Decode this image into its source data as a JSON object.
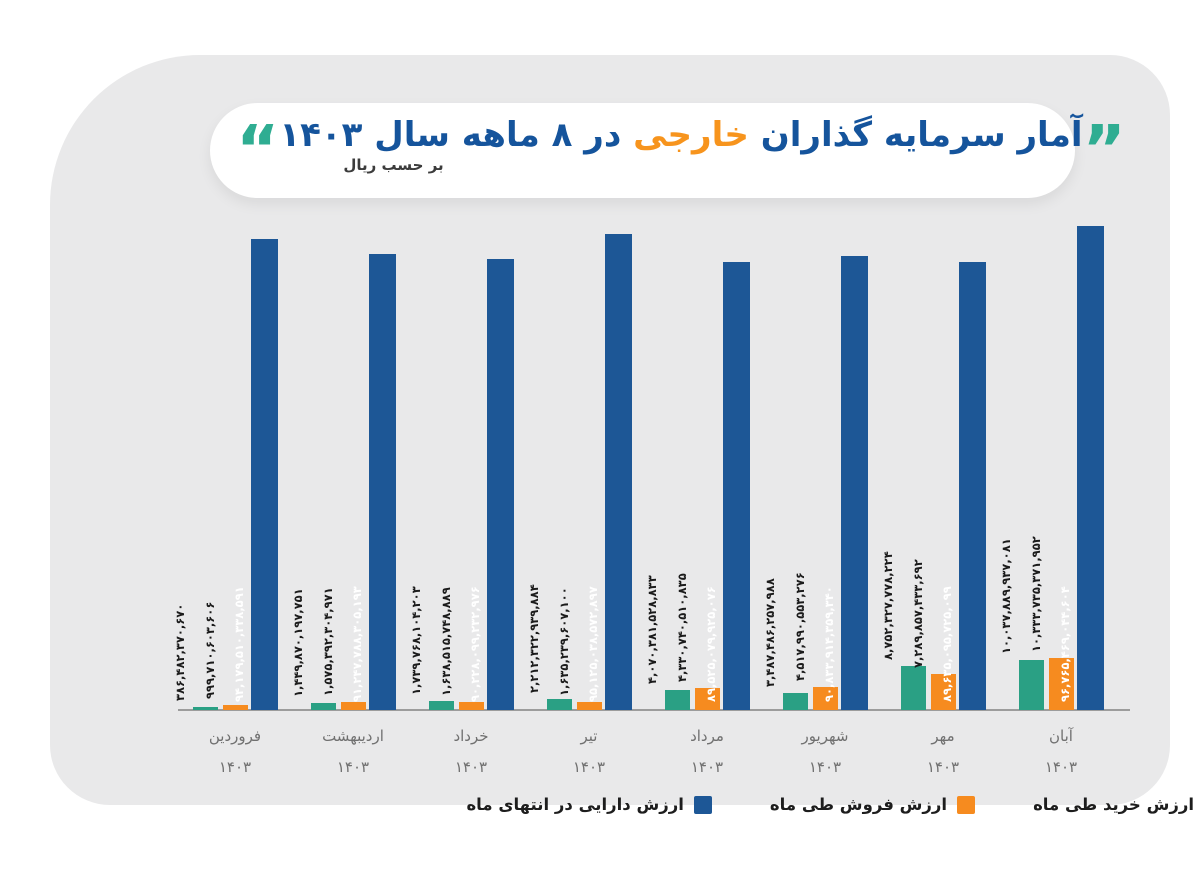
{
  "header": {
    "title_part1": "آمار سرمایه گذاران",
    "title_highlight": "خارجی",
    "title_part2": "در ۸ ماهه سال ۱۴۰۳",
    "subtitle": "بر حسب ریال",
    "quote_open": "“",
    "quote_close": "”",
    "accent_teal": "#2fad92",
    "accent_blue": "#15549c",
    "accent_orange": "#f7941d"
  },
  "chart_data": {
    "type": "bar",
    "title": "آمار سرمایه گذاران خارجی در ۸ ماهه سال ۱۴۰۳",
    "unit_note": "بر حسب ریال",
    "grid": false,
    "legend_position": "bottom",
    "ylim": [
      0,
      100000000000000
    ],
    "categories": [
      {
        "id": "farvardin",
        "label": "فروردین",
        "year": "۱۴۰۳"
      },
      {
        "id": "ordibehesht",
        "label": "اردیبهشت",
        "year": "۱۴۰۳"
      },
      {
        "id": "khordad",
        "label": "خرداد",
        "year": "۱۴۰۳"
      },
      {
        "id": "tir",
        "label": "تیر",
        "year": "۱۴۰۳"
      },
      {
        "id": "mordad",
        "label": "مرداد",
        "year": "۱۴۰۳"
      },
      {
        "id": "shahrivar",
        "label": "شهریور",
        "year": "۱۴۰۳"
      },
      {
        "id": "mehr",
        "label": "مهر",
        "year": "۱۴۰۳"
      },
      {
        "id": "aban",
        "label": "آبان",
        "year": "۱۴۰۳"
      }
    ],
    "series": [
      {
        "id": "purchase",
        "name": "ارزش خرید طی ماه",
        "color": "#2aa084",
        "values": [
          386482370670,
          1449870197751,
          1739768104203,
          2212322939884,
          4070381528833,
          3487486257988,
          8752327778224,
          10037889937081
        ],
        "labels": [
          "۳۸۶,۴۸۲,۳۷۰,۶۷۰",
          "۱,۴۴۹,۸۷۰,۱۹۷,۷۵۱",
          "۱,۷۳۹,۷۶۸,۱۰۴,۲۰۳",
          "۲,۲۱۲,۳۲۲,۹۳۹,۸۸۴",
          "۴,۰۷۰,۳۸۱,۵۲۸,۸۳۳",
          "۳,۴۸۷,۴۸۶,۲۵۷,۹۸۸",
          "۸,۷۵۲,۳۲۷,۷۷۸,۲۲۴",
          "۱۰,۰۳۷,۸۸۹,۹۳۷,۰۸۱"
        ]
      },
      {
        "id": "sale",
        "name": "ارزش فروش طی ماه",
        "color": "#f68b1f",
        "values": [
          999710603606,
          1575392304971,
          1638515748889,
          1635239607100,
          4330740510835,
          4517990553276,
          7289857433692,
          10333735371952
        ],
        "labels": [
          "۹۹۹,۷۱۰,۶۰۳,۶۰۶",
          "۱,۵۷۵,۳۹۲,۳۰۴,۹۷۱",
          "۱,۶۳۸,۵۱۵,۷۴۸,۸۸۹",
          "۱,۶۳۵,۲۳۹,۶۰۷,۱۰۰",
          "۴,۳۳۰,۷۴۰,۵۱۰,۸۳۵",
          "۴,۵۱۷,۹۹۰,۵۵۳,۲۷۶",
          "۷,۲۸۹,۸۵۷,۴۳۳,۶۹۲",
          "۱۰,۳۳۳,۷۳۵,۳۷۱,۹۵۲"
        ]
      },
      {
        "id": "assets",
        "name": "ارزش دارایی در انتهای ماه",
        "color": "#1d5796",
        "values": [
          94179510338591,
          91247788305193,
          90228099232976,
          95125038572897,
          89525079925076,
          90833914359340,
          89635095725099,
          96765469044604
        ],
        "labels": [
          "۹۴,۱۷۹,۵۱۰,۳۳۸,۵۹۱",
          "۹۱,۲۴۷,۷۸۸,۳۰۵,۱۹۳",
          "۹۰,۲۲۸,۰۹۹,۲۳۲,۹۷۶",
          "۹۵,۱۲۵,۰۳۸,۵۷۲,۸۹۷",
          "۸۹,۵۲۵,۰۷۹,۹۲۵,۰۷۶",
          "۹۰,۸۳۳,۹۱۴,۳۵۹,۳۴۰",
          "۸۹,۶۳۵,۰۹۵,۷۲۵,۰۹۹",
          "۹۶,۷۶۵,۴۶۹,۰۴۴,۶۰۴"
        ]
      }
    ]
  }
}
